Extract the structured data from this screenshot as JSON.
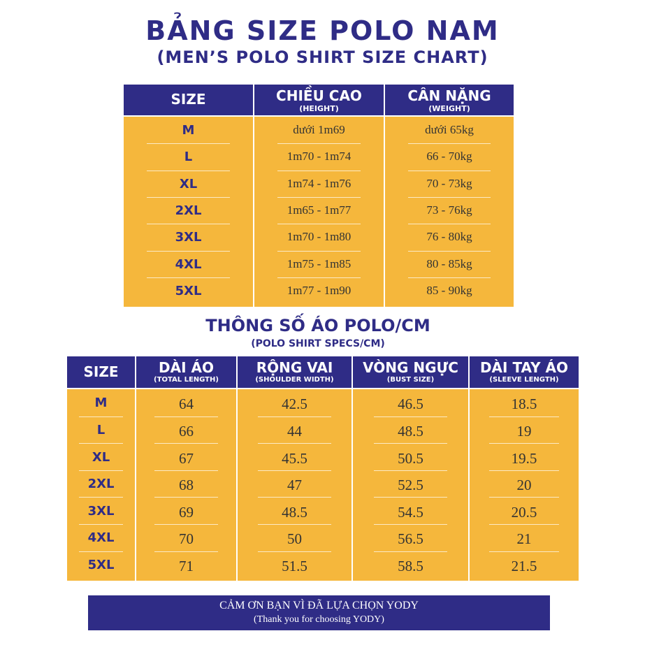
{
  "title": "BẢNG SIZE POLO NAM",
  "subtitle": "(MEN’S POLO SHIRT SIZE CHART)",
  "size_table": {
    "header": [
      {
        "label": "SIZE"
      },
      {
        "label": "CHIỀU CAO",
        "sub": "(HEIGHT)"
      },
      {
        "label": "CÂN NẶNG",
        "sub": "(WEIGHT)"
      }
    ],
    "rows": [
      [
        "M",
        "dưới 1m69",
        "dưới 65kg"
      ],
      [
        "L",
        "1m70 - 1m74",
        "66 - 70kg"
      ],
      [
        "XL",
        "1m74 - 1m76",
        "70 - 73kg"
      ],
      [
        "2XL",
        "1m65 - 1m77",
        "73 - 76kg"
      ],
      [
        "3XL",
        "1m70 - 1m80",
        "76 - 80kg"
      ],
      [
        "4XL",
        "1m75 - 1m85",
        "80 - 85kg"
      ],
      [
        "5XL",
        "1m77 - 1m90",
        "85 - 90kg"
      ]
    ]
  },
  "specs_title": "THÔNG SỐ ÁO POLO/CM",
  "specs_subtitle": "(POLO SHIRT SPECS/CM)",
  "specs_table": {
    "header": [
      {
        "label": "SIZE"
      },
      {
        "label": "DÀI ÁO",
        "sub": "(TOTAL LENGTH)"
      },
      {
        "label": "RỘNG VAI",
        "sub": "(SHOULDER WIDTH)"
      },
      {
        "label": "VÒNG NGỰC",
        "sub": "(BUST SIZE)"
      },
      {
        "label": "DÀI TAY ÁO",
        "sub": "(SLEEVE LENGTH)"
      }
    ],
    "rows": [
      [
        "M",
        "64",
        "42.5",
        "46.5",
        "18.5"
      ],
      [
        "L",
        "66",
        "44",
        "48.5",
        "19"
      ],
      [
        "XL",
        "67",
        "45.5",
        "50.5",
        "19.5"
      ],
      [
        "2XL",
        "68",
        "47",
        "52.5",
        "20"
      ],
      [
        "3XL",
        "69",
        "48.5",
        "54.5",
        "20.5"
      ],
      [
        "4XL",
        "70",
        "50",
        "56.5",
        "21"
      ],
      [
        "5XL",
        "71",
        "51.5",
        "58.5",
        "21.5"
      ]
    ]
  },
  "footer": {
    "line1": "CẢM ƠN BẠN VÌ ĐÃ LỰA CHỌN YODY",
    "line2": "(Thank you for choosing YODY)"
  }
}
